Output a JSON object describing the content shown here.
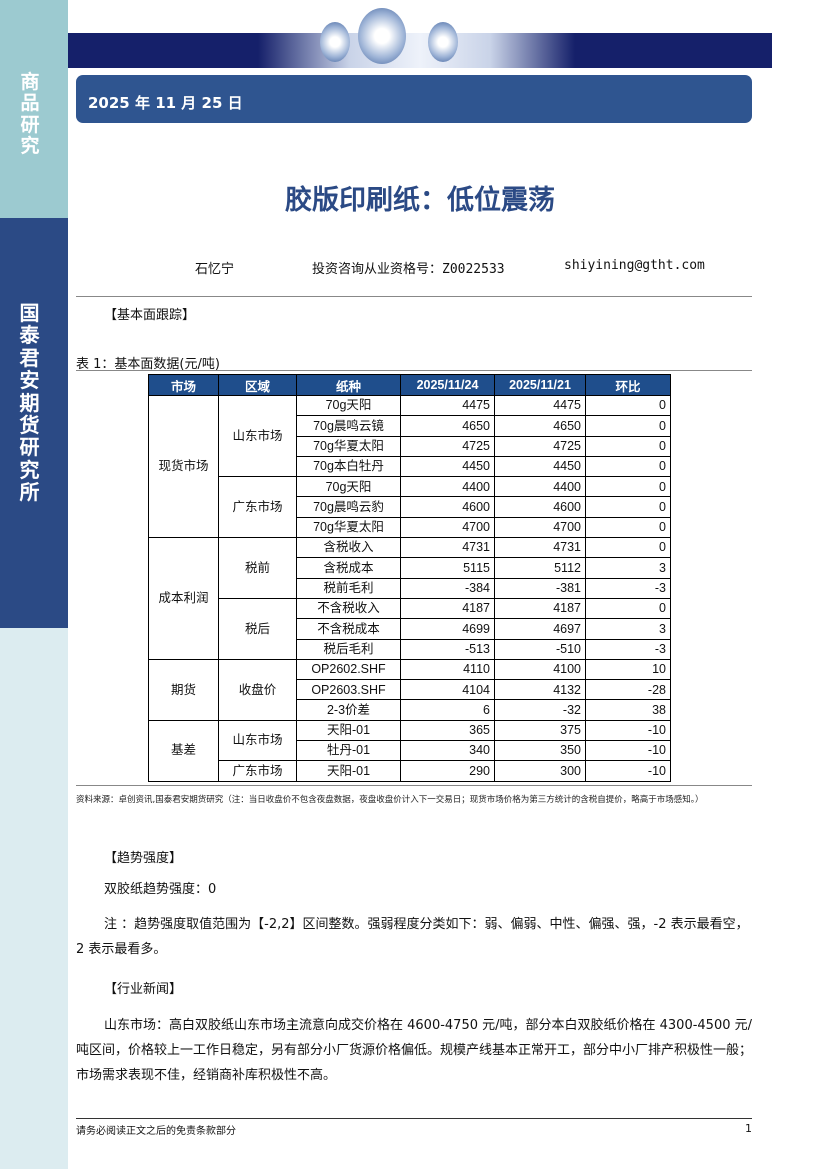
{
  "sidebar": {
    "top_label": "商品研究",
    "mid_label": "国泰君安期货研究所"
  },
  "header": {
    "date": "2025 年 11 月 25 日"
  },
  "title": "胶版印刷纸：低位震荡",
  "author": {
    "name": "石忆宁",
    "qualification": "投资咨询从业资格号：Z0022533",
    "email": "shiyining@gtht.com"
  },
  "sections": {
    "fundamentals": "【基本面跟踪】",
    "trend": "【趋势强度】",
    "news": "【行业新闻】"
  },
  "table": {
    "caption": "表 1：基本面数据(元/吨)",
    "headers": [
      "市场",
      "区域",
      "纸种",
      "2025/11/24",
      "2025/11/21",
      "环比"
    ],
    "groups": [
      {
        "market": "现货市场",
        "regions": [
          {
            "region": "山东市场",
            "rows": [
              [
                "70g天阳",
                "4475",
                "4475",
                "0"
              ],
              [
                "70g晨鸣云镜",
                "4650",
                "4650",
                "0"
              ],
              [
                "70g华夏太阳",
                "4725",
                "4725",
                "0"
              ],
              [
                "70g本白牡丹",
                "4450",
                "4450",
                "0"
              ]
            ]
          },
          {
            "region": "广东市场",
            "rows": [
              [
                "70g天阳",
                "4400",
                "4400",
                "0"
              ],
              [
                "70g晨鸣云豹",
                "4600",
                "4600",
                "0"
              ],
              [
                "70g华夏太阳",
                "4700",
                "4700",
                "0"
              ]
            ]
          }
        ]
      },
      {
        "market": "成本利润",
        "regions": [
          {
            "region": "税前",
            "rows": [
              [
                "含税收入",
                "4731",
                "4731",
                "0"
              ],
              [
                "含税成本",
                "5115",
                "5112",
                "3"
              ],
              [
                "税前毛利",
                "-384",
                "-381",
                "-3"
              ]
            ]
          },
          {
            "region": "税后",
            "rows": [
              [
                "不含税收入",
                "4187",
                "4187",
                "0"
              ],
              [
                "不含税成本",
                "4699",
                "4697",
                "3"
              ],
              [
                "税后毛利",
                "-513",
                "-510",
                "-3"
              ]
            ]
          }
        ]
      },
      {
        "market": "期货",
        "regions": [
          {
            "region": "收盘价",
            "rows": [
              [
                "OP2602.SHF",
                "4110",
                "4100",
                "10"
              ],
              [
                "OP2603.SHF",
                "4104",
                "4132",
                "-28"
              ],
              [
                "2-3价差",
                "6",
                "-32",
                "38"
              ]
            ]
          }
        ]
      },
      {
        "market": "基差",
        "regions": [
          {
            "region": "山东市场",
            "rows": [
              [
                "天阳-01",
                "365",
                "375",
                "-10"
              ],
              [
                "牡丹-01",
                "340",
                "350",
                "-10"
              ]
            ]
          },
          {
            "region": "广东市场",
            "rows": [
              [
                "天阳-01",
                "290",
                "300",
                "-10"
              ]
            ]
          }
        ]
      }
    ],
    "source": "资料来源：卓创资讯,国泰君安期货研究（注：当日收盘价不包含夜盘数据，夜盘收盘价计入下一交易日；现货市场价格为第三方统计的含税自提价，略高于市场感知。）"
  },
  "trend": {
    "value_text": "双胶纸趋势强度：0",
    "note": "注 ：趋势强度取值范围为【-2,2】区间整数。强弱程度分类如下：弱、偏弱、中性、偏强、强，-2 表示最看空，2 表示最看多。"
  },
  "news": {
    "text": "山东市场：高白双胶纸山东市场主流意向成交价格在 4600-4750 元/吨，部分本白双胶纸价格在 4300-4500 元/吨区间，价格较上一工作日稳定，另有部分小厂货源价格偏低。规模产线基本正常开工，部分中小厂排产积极性一般；市场需求表现不佳，经销商补库积极性不高。"
  },
  "footer": {
    "disclaimer": "请务必阅读正文之后的免责条款部分",
    "page": "1"
  }
}
